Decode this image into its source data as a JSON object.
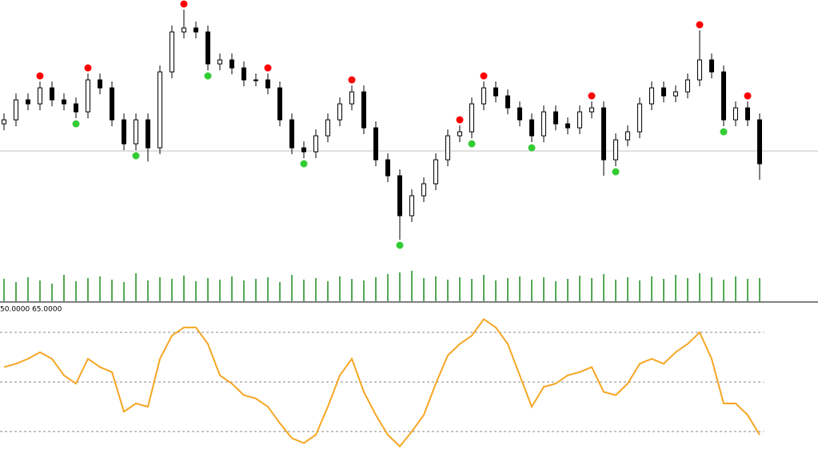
{
  "chart_data": [
    {
      "type": "candlestick",
      "open": [
        175,
        180,
        205,
        200,
        220,
        205,
        200,
        190,
        230,
        220,
        180,
        150,
        180,
        145,
        240,
        290,
        295,
        290,
        250,
        255,
        245,
        230,
        230,
        220,
        180,
        145,
        140,
        160,
        180,
        200,
        215,
        170,
        130,
        110,
        60,
        85,
        100,
        130,
        160,
        165,
        200,
        220,
        210,
        195,
        180,
        160,
        190,
        175,
        170,
        190,
        195,
        130,
        155,
        165,
        200,
        220,
        210,
        215,
        230,
        255,
        240,
        180,
        195,
        180
      ],
      "high": [
        188,
        213,
        213,
        228,
        228,
        213,
        208,
        238,
        238,
        228,
        188,
        188,
        188,
        248,
        298,
        318,
        303,
        298,
        263,
        263,
        253,
        238,
        238,
        228,
        188,
        153,
        168,
        188,
        208,
        223,
        223,
        178,
        138,
        118,
        93,
        108,
        138,
        168,
        173,
        208,
        228,
        228,
        218,
        203,
        188,
        198,
        198,
        183,
        198,
        203,
        203,
        163,
        173,
        208,
        228,
        228,
        223,
        238,
        292,
        263,
        248,
        203,
        203,
        188
      ],
      "low": [
        167,
        172,
        192,
        192,
        197,
        192,
        182,
        182,
        212,
        172,
        142,
        142,
        128,
        137,
        232,
        282,
        282,
        242,
        242,
        237,
        222,
        222,
        212,
        172,
        137,
        132,
        132,
        152,
        172,
        192,
        162,
        122,
        102,
        30,
        52,
        77,
        92,
        122,
        152,
        157,
        192,
        202,
        187,
        172,
        152,
        152,
        167,
        162,
        162,
        182,
        110,
        122,
        147,
        157,
        192,
        202,
        202,
        207,
        222,
        232,
        172,
        172,
        172,
        105
      ],
      "close": [
        180,
        205,
        200,
        220,
        205,
        200,
        190,
        230,
        220,
        180,
        150,
        180,
        145,
        240,
        290,
        295,
        290,
        250,
        255,
        245,
        230,
        230,
        220,
        180,
        145,
        140,
        160,
        180,
        200,
        215,
        170,
        130,
        110,
        60,
        85,
        100,
        130,
        160,
        165,
        200,
        220,
        210,
        195,
        180,
        160,
        190,
        175,
        170,
        190,
        195,
        130,
        155,
        165,
        200,
        220,
        210,
        215,
        230,
        255,
        240,
        180,
        195,
        180,
        125
      ],
      "ylim": [
        0,
        330
      ],
      "hline": 141,
      "volume": [
        28,
        24,
        30,
        26,
        22,
        33,
        25,
        29,
        31,
        27,
        24,
        35,
        26,
        30,
        28,
        32,
        25,
        29,
        27,
        31,
        26,
        28,
        30,
        24,
        33,
        27,
        29,
        25,
        31,
        28,
        26,
        30,
        34,
        36,
        38,
        29,
        31,
        27,
        30,
        28,
        33,
        26,
        29,
        31,
        27,
        30,
        25,
        28,
        32,
        29,
        34,
        27,
        30,
        26,
        31,
        28,
        33,
        29,
        35,
        30,
        27,
        31,
        28,
        29
      ],
      "volume_ylim": [
        0,
        40
      ],
      "volume_color": "#1a8a1a",
      "signals_high": {
        "index": [
          3,
          7,
          15,
          22,
          29,
          38,
          40,
          49,
          58,
          62
        ],
        "values": [
          235,
          245,
          325,
          245,
          230,
          180,
          235,
          210,
          299,
          210
        ],
        "color": "#ff0000"
      },
      "signals_low": {
        "index": [
          6,
          11,
          17,
          25,
          33,
          39,
          44,
          51,
          60
        ],
        "values": [
          175,
          135,
          235,
          125,
          23,
          150,
          145,
          115,
          165
        ],
        "color": "#33cc33"
      }
    },
    {
      "type": "line",
      "title": "50.0000 65.0000",
      "values": [
        59,
        61,
        64,
        68,
        64,
        54,
        49,
        64,
        59,
        56,
        32,
        37,
        35,
        64,
        78,
        83,
        83,
        73,
        54,
        49,
        42,
        40,
        35,
        25,
        16,
        13,
        18,
        35,
        54,
        64,
        44,
        30,
        18,
        11,
        20,
        30,
        49,
        66,
        73,
        78,
        88,
        83,
        73,
        54,
        35,
        47,
        49,
        54,
        56,
        59,
        44,
        42,
        49,
        61,
        64,
        61,
        68,
        73,
        80,
        64,
        37,
        37,
        30,
        18
      ],
      "ylim": [
        7,
        95
      ],
      "levels": [
        20,
        50,
        80
      ],
      "color": "#f5a623"
    }
  ]
}
